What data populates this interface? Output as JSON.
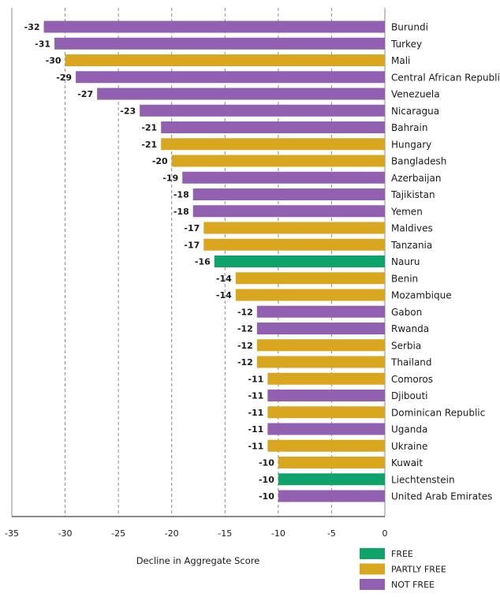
{
  "chart_data": {
    "type": "bar",
    "orientation": "horizontal",
    "xlabel": "Decline in Aggregate Score",
    "xlim": [
      -35,
      0
    ],
    "xticks": [
      -35,
      -30,
      -25,
      -20,
      -15,
      -10,
      -5,
      0
    ],
    "grid": "vertical dashed",
    "legend_placement": "bottom-right",
    "status_colors": {
      "FREE": "#0fa36b",
      "PARTLY FREE": "#d8a71f",
      "NOT FREE": "#9160b0"
    },
    "legend": [
      "FREE",
      "PARTLY FREE",
      "NOT FREE"
    ],
    "bars": [
      {
        "country": "Burundi",
        "value": -32,
        "status": "NOT FREE"
      },
      {
        "country": "Turkey",
        "value": -31,
        "status": "NOT FREE"
      },
      {
        "country": "Mali",
        "value": -30,
        "status": "PARTLY FREE"
      },
      {
        "country": "Central African Republic",
        "value": -29,
        "status": "NOT FREE"
      },
      {
        "country": "Venezuela",
        "value": -27,
        "status": "NOT FREE"
      },
      {
        "country": "Nicaragua",
        "value": -23,
        "status": "NOT FREE"
      },
      {
        "country": "Bahrain",
        "value": -21,
        "status": "NOT FREE"
      },
      {
        "country": "Hungary",
        "value": -21,
        "status": "PARTLY FREE"
      },
      {
        "country": "Bangladesh",
        "value": -20,
        "status": "PARTLY FREE"
      },
      {
        "country": "Azerbaijan",
        "value": -19,
        "status": "NOT FREE"
      },
      {
        "country": "Tajikistan",
        "value": -18,
        "status": "NOT FREE"
      },
      {
        "country": "Yemen",
        "value": -18,
        "status": "NOT FREE"
      },
      {
        "country": "Maldives",
        "value": -17,
        "status": "PARTLY FREE"
      },
      {
        "country": "Tanzania",
        "value": -17,
        "status": "PARTLY FREE"
      },
      {
        "country": "Nauru",
        "value": -16,
        "status": "FREE"
      },
      {
        "country": "Benin",
        "value": -14,
        "status": "PARTLY FREE"
      },
      {
        "country": "Mozambique",
        "value": -14,
        "status": "PARTLY FREE"
      },
      {
        "country": "Gabon",
        "value": -12,
        "status": "NOT FREE"
      },
      {
        "country": "Rwanda",
        "value": -12,
        "status": "NOT FREE"
      },
      {
        "country": "Serbia",
        "value": -12,
        "status": "PARTLY FREE"
      },
      {
        "country": "Thailand",
        "value": -12,
        "status": "PARTLY FREE"
      },
      {
        "country": "Comoros",
        "value": -11,
        "status": "PARTLY FREE"
      },
      {
        "country": "Djibouti",
        "value": -11,
        "status": "NOT FREE"
      },
      {
        "country": "Dominican Republic",
        "value": -11,
        "status": "PARTLY FREE"
      },
      {
        "country": "Uganda",
        "value": -11,
        "status": "NOT FREE"
      },
      {
        "country": "Ukraine",
        "value": -11,
        "status": "PARTLY FREE"
      },
      {
        "country": "Kuwait",
        "value": -10,
        "status": "PARTLY FREE"
      },
      {
        "country": "Liechtenstein",
        "value": -10,
        "status": "FREE"
      },
      {
        "country": "United Arab Emirates",
        "value": -10,
        "status": "NOT FREE"
      }
    ]
  }
}
